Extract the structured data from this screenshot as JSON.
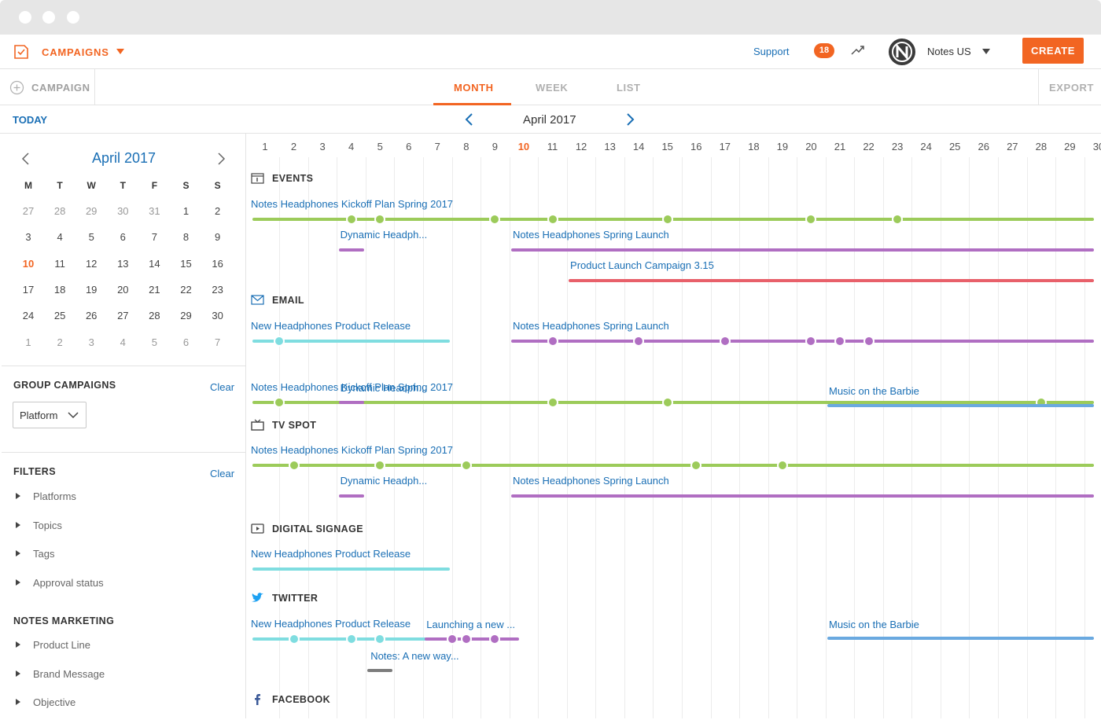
{
  "app": {
    "title": "CAMPAIGNS"
  },
  "header": {
    "support": "Support",
    "notifications": "18",
    "user": "Notes US",
    "create": "CREATE"
  },
  "toolbar": {
    "campaign": "CAMPAIGN",
    "tabs": [
      "MONTH",
      "WEEK",
      "LIST"
    ],
    "active_tab": "MONTH",
    "export": "EXPORT"
  },
  "nav": {
    "today": "TODAY",
    "month_title": "April 2017"
  },
  "mini_calendar": {
    "title": "April 2017",
    "weekdays": [
      "M",
      "T",
      "W",
      "T",
      "F",
      "S",
      "S"
    ],
    "weeks": [
      [
        "27",
        "28",
        "29",
        "30",
        "31",
        "1",
        "2"
      ],
      [
        "3",
        "4",
        "5",
        "6",
        "7",
        "8",
        "9"
      ],
      [
        "10",
        "11",
        "12",
        "13",
        "14",
        "15",
        "16"
      ],
      [
        "17",
        "18",
        "19",
        "20",
        "21",
        "22",
        "23"
      ],
      [
        "24",
        "25",
        "26",
        "27",
        "28",
        "29",
        "30"
      ],
      [
        "1",
        "2",
        "3",
        "4",
        "5",
        "6",
        "7"
      ]
    ],
    "muted_first_row": 5,
    "muted_last_row": 7,
    "today": "10"
  },
  "group_campaigns": {
    "title": "GROUP CAMPAIGNS",
    "clear": "Clear",
    "select_value": "Platform"
  },
  "filters": {
    "title": "FILTERS",
    "clear": "Clear",
    "items": [
      "Platforms",
      "Topics",
      "Tags",
      "Approval status"
    ]
  },
  "notes_marketing": {
    "title": "NOTES MARKETING",
    "items": [
      "Product Line",
      "Brand Message",
      "Objective"
    ]
  },
  "days": [
    "1",
    "2",
    "3",
    "4",
    "5",
    "6",
    "7",
    "8",
    "9",
    "10",
    "11",
    "12",
    "13",
    "14",
    "15",
    "16",
    "17",
    "18",
    "19",
    "20",
    "21",
    "22",
    "23",
    "24",
    "25",
    "26",
    "27",
    "28",
    "29",
    "30"
  ],
  "today_day": "10",
  "colors": {
    "accent": "#f26522",
    "link": "#1a6fb5",
    "green": "#9ccb5a",
    "purple": "#b06ec2",
    "red": "#e8606a",
    "cyan": "#7fdde0",
    "blue": "#6aa9e0",
    "gray": "#7d7d7d"
  },
  "categories": [
    {
      "name": "EVENTS",
      "icon": "calendar-icon",
      "rows": [
        {
          "label": "Notes Headphones Kickoff Plan Spring 2017",
          "start": 1,
          "end": 30,
          "color": "green",
          "dots": [
            4,
            5,
            9,
            11,
            15,
            20,
            23
          ]
        },
        {
          "label": "Dynamic Headph...",
          "start": 4,
          "end": 4.8,
          "color": "purple",
          "dots": []
        },
        {
          "label": "Notes Headphones Spring Launch",
          "start": 10,
          "end": 30,
          "color": "purple",
          "dots": []
        },
        {
          "label": "Product Launch Campaign 3.15",
          "start": 12,
          "end": 30,
          "color": "red",
          "dots": []
        }
      ]
    },
    {
      "name": "EMAIL",
      "icon": "mail-icon",
      "rows": [
        {
          "label": "New Headphones Product Release",
          "start": 1,
          "end": 7,
          "color": "cyan",
          "dots": [
            1.5
          ]
        },
        {
          "label": "Notes Headphones Spring Launch",
          "start": 10,
          "end": 30,
          "color": "purple",
          "dots": [
            11,
            14,
            17,
            20,
            21,
            22
          ]
        },
        {
          "label": "Notes Headphones Kickoff Plan Spring 2017",
          "start": 1,
          "end": 30,
          "color": "green",
          "dots": [
            1.5,
            11,
            15,
            28
          ]
        },
        {
          "label": "Dynamic Headph...",
          "start": 4,
          "end": 4.8,
          "color": "purple",
          "dots": []
        },
        {
          "label": "Music on the Barbie",
          "start": 21,
          "end": 30,
          "color": "blue",
          "dots": []
        }
      ]
    },
    {
      "name": "TV SPOT",
      "icon": "tv-icon",
      "rows": [
        {
          "label": "Notes Headphones Kickoff Plan Spring 2017",
          "start": 1,
          "end": 30,
          "color": "green",
          "dots": [
            2,
            5,
            8,
            16,
            19
          ]
        },
        {
          "label": "Dynamic Headph...",
          "start": 4,
          "end": 4.8,
          "color": "purple",
          "dots": []
        },
        {
          "label": "Notes Headphones Spring Launch",
          "start": 10,
          "end": 30,
          "color": "purple",
          "dots": []
        }
      ]
    },
    {
      "name": "DIGITAL SIGNAGE",
      "icon": "display-icon",
      "rows": [
        {
          "label": "New Headphones Product Release",
          "start": 1,
          "end": 7,
          "color": "cyan",
          "dots": []
        }
      ]
    },
    {
      "name": "TWITTER",
      "icon": "twitter-icon",
      "rows": [
        {
          "label": "New Headphones Product Release",
          "start": 1,
          "end": 7,
          "color": "cyan",
          "dots": [
            2,
            4,
            5
          ]
        },
        {
          "label": "Launching a new ...",
          "start": 7,
          "end": 9.4,
          "color": "purple",
          "dots": [
            7.5,
            8,
            9
          ]
        },
        {
          "label": "Notes: A new way...",
          "start": 5,
          "end": 5.8,
          "color": "gray",
          "dots": []
        },
        {
          "label": "Music on the Barbie",
          "start": 21,
          "end": 30,
          "color": "blue",
          "dots": []
        }
      ]
    },
    {
      "name": "FACEBOOK",
      "icon": "facebook-icon",
      "rows": []
    }
  ]
}
